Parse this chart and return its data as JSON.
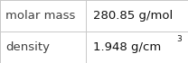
{
  "rows": [
    {
      "label": "molar mass",
      "value": "280.85 g/mol",
      "superscript": null
    },
    {
      "label": "density",
      "value": "1.948 g/cm",
      "superscript": "3"
    }
  ],
  "bg_color": "#ffffff",
  "border_color": "#c8c8c8",
  "label_color": "#404040",
  "value_color": "#111111",
  "font_size": 9.5,
  "sup_font_size": 6.5,
  "col_split": 0.455,
  "figwidth": 2.08,
  "figheight": 0.7,
  "dpi": 100
}
